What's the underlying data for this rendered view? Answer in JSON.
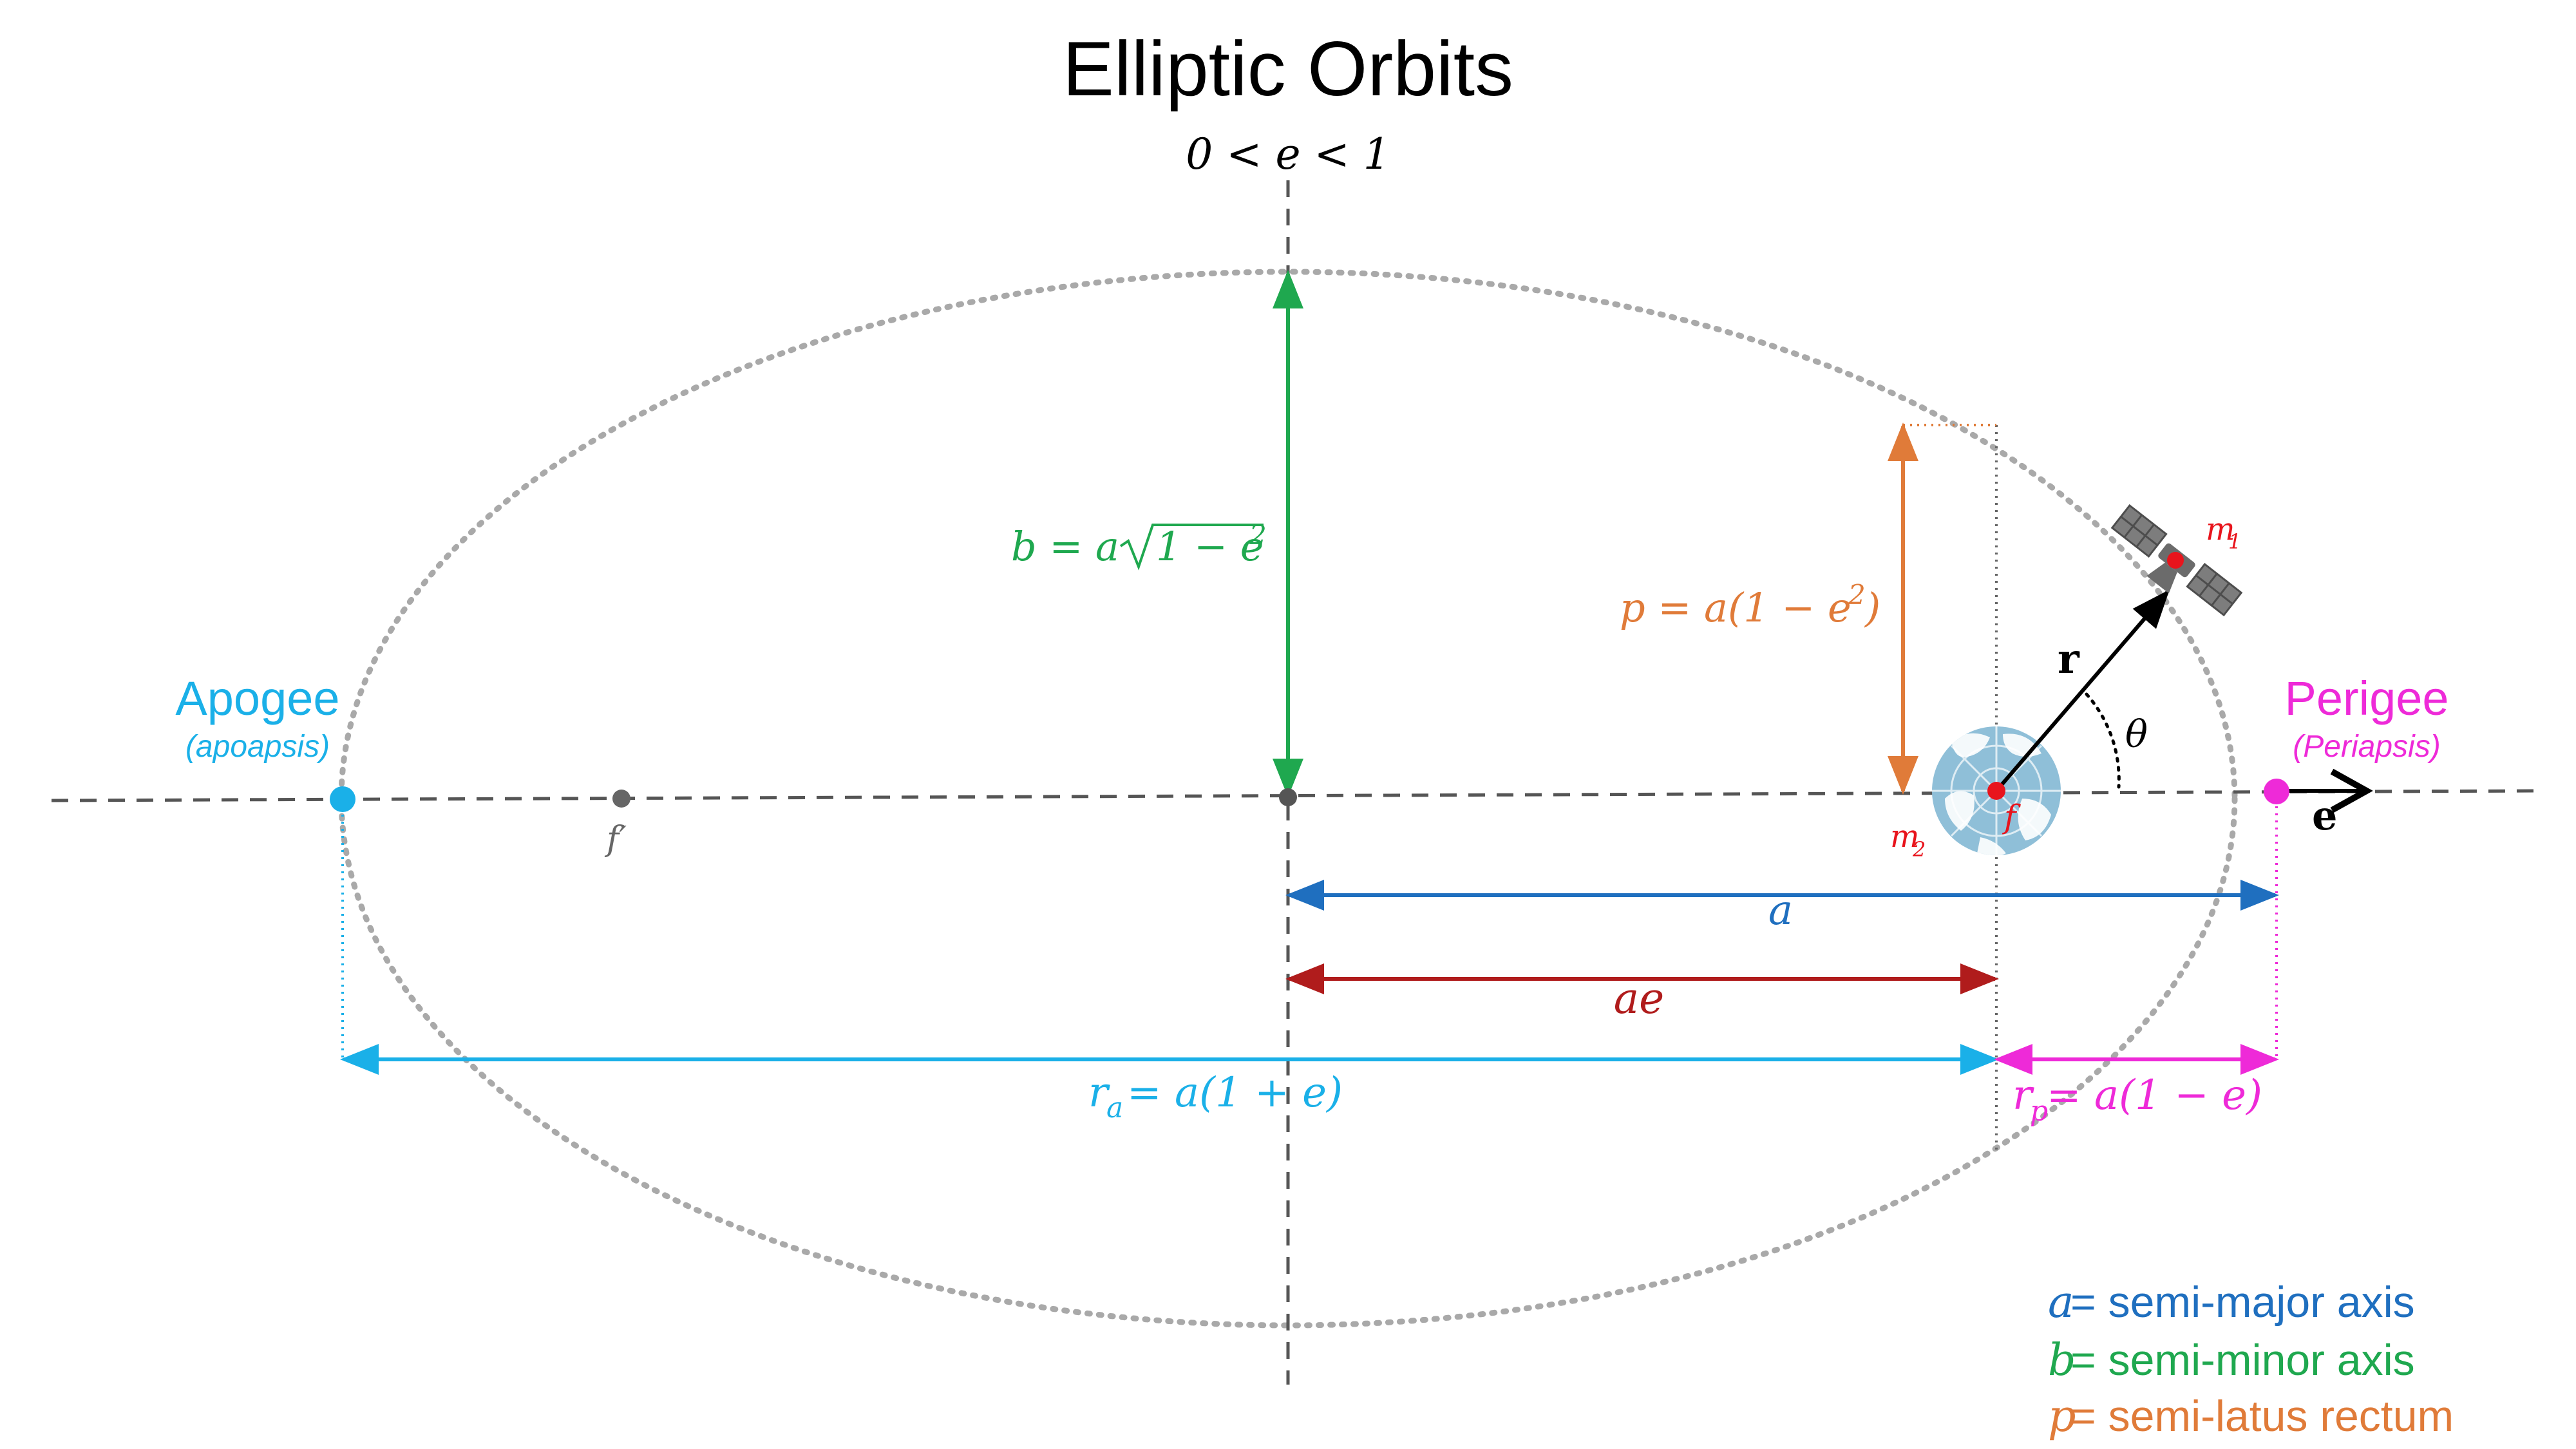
{
  "title": "Elliptic Orbits",
  "eccentricity_range": "0 < e < 1",
  "labels": {
    "apogee": "Apogee",
    "apoapsis": "(apoapsis)",
    "perigee": "Perigee",
    "periapsis": "(Periapsis)",
    "f_prime": "f′",
    "f": "f",
    "m1": "m",
    "m1_sub": "1",
    "m2": "m",
    "m2_sub": "2",
    "r_vec": "r",
    "e_vec": "e",
    "theta": "θ",
    "b_formula_a": "b = a",
    "b_formula_root": "1 − e",
    "b_formula_sup": "2",
    "p_formula": "p = a(1 − e",
    "p_formula_sup": "2",
    "p_formula_close": ")",
    "a": "a",
    "ae": "ae",
    "ra_r": "r",
    "ra_sub": "a",
    "ra_formula": " = a(1 + e)",
    "rp_r": "r",
    "rp_sub": "p",
    "rp_formula": " = a(1 − e)"
  },
  "legend": [
    {
      "symbol": "a",
      "text": " = semi-major axis",
      "color": "#1f6fbf"
    },
    {
      "symbol": "b",
      "text": " = semi-minor axis",
      "color": "#1fa84f"
    },
    {
      "symbol": "p",
      "text": " = semi-latus rectum",
      "color": "#e07b39"
    }
  ],
  "colors": {
    "apogee": "#1ab0e8",
    "perigee": "#ee2ad8",
    "semi_major": "#1f6fbf",
    "semi_minor": "#1fa84f",
    "semi_latus": "#e07b39",
    "ae": "#b01c1c",
    "ellipse": "#a9a9a9",
    "axis": "#555555",
    "earth": "#8fbfd8"
  },
  "icons": [
    "satellite-icon",
    "earth-icon"
  ]
}
